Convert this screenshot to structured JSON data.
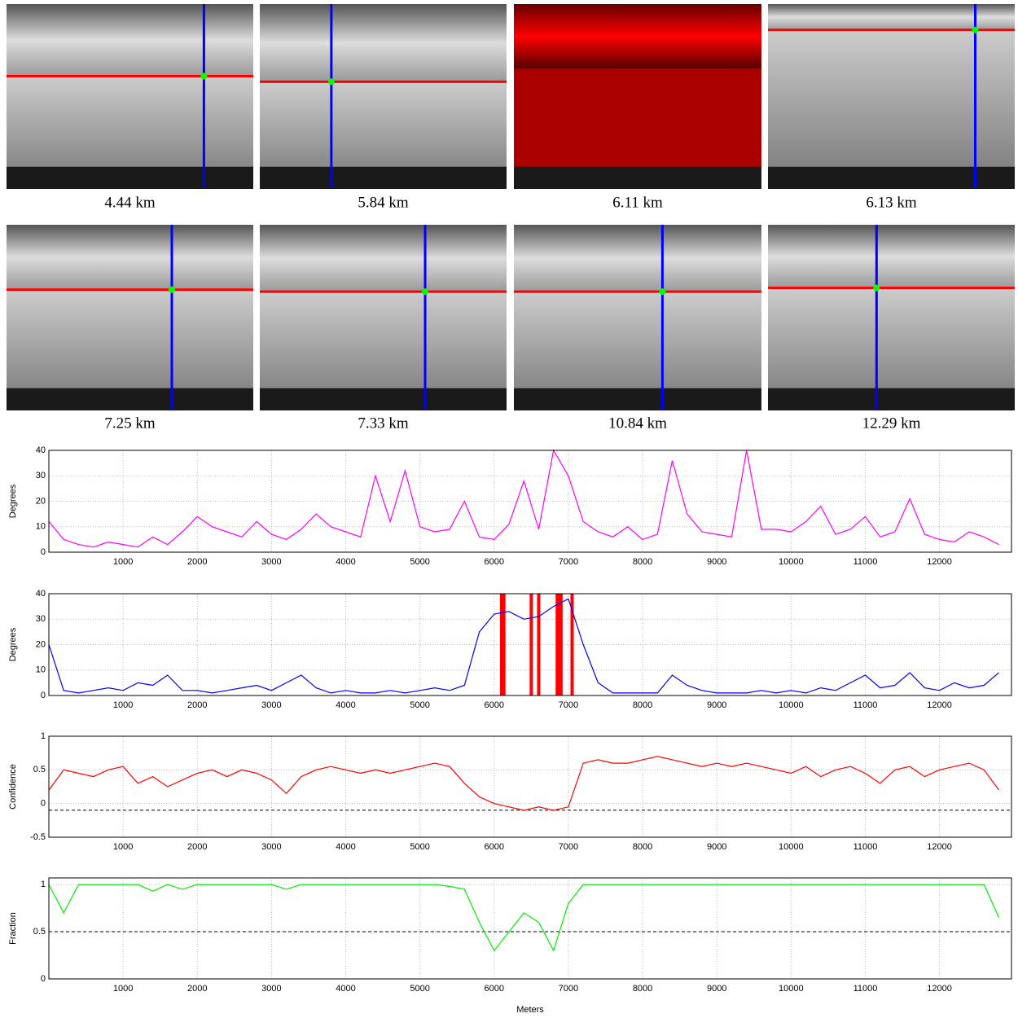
{
  "panels": [
    {
      "caption": "4.44 km"
    },
    {
      "caption": "5.84 km"
    },
    {
      "caption": "6.11 km"
    },
    {
      "caption": "6.13 km"
    },
    {
      "caption": "7.25 km"
    },
    {
      "caption": "7.33 km"
    },
    {
      "caption": "10.84 km"
    },
    {
      "caption": "12.29 km"
    }
  ],
  "chart_data": [
    {
      "type": "line",
      "ylabel": "Degrees",
      "color": "#ff00ff",
      "grid": true,
      "xlim": [
        0,
        12970
      ],
      "xticks": [
        1000,
        2000,
        3000,
        4000,
        5000,
        6000,
        7000,
        8000,
        9000,
        10000,
        11000,
        12000
      ],
      "ylim": [
        0,
        40
      ],
      "yticks": [
        0,
        10,
        20,
        30,
        40
      ],
      "x": [
        0,
        200,
        400,
        600,
        800,
        1000,
        1200,
        1400,
        1600,
        1800,
        2000,
        2200,
        2400,
        2600,
        2800,
        3000,
        3200,
        3400,
        3600,
        3800,
        4000,
        4200,
        4400,
        4600,
        4800,
        5000,
        5200,
        5400,
        5600,
        5800,
        6000,
        6200,
        6400,
        6600,
        6800,
        7000,
        7200,
        7400,
        7600,
        7800,
        8000,
        8200,
        8400,
        8600,
        8800,
        9000,
        9200,
        9400,
        9600,
        9800,
        10000,
        10200,
        10400,
        10600,
        10800,
        11000,
        11200,
        11400,
        11600,
        11800,
        12000,
        12200,
        12400,
        12600,
        12800
      ],
      "values": [
        12,
        5,
        3,
        2,
        4,
        3,
        2,
        6,
        3,
        8,
        14,
        10,
        8,
        6,
        12,
        7,
        5,
        9,
        15,
        10,
        8,
        6,
        30,
        12,
        32,
        10,
        8,
        9,
        20,
        6,
        5,
        11,
        28,
        9,
        40,
        30,
        12,
        8,
        6,
        10,
        5,
        7,
        36,
        15,
        8,
        7,
        6,
        40,
        9,
        9,
        8,
        12,
        18,
        7,
        9,
        14,
        6,
        8,
        21,
        7,
        5,
        4,
        8,
        6,
        3
      ]
    },
    {
      "type": "line",
      "ylabel": "Degrees",
      "color": "#0000ff",
      "grid": true,
      "xlim": [
        0,
        12970
      ],
      "xticks": [
        1000,
        2000,
        3000,
        4000,
        5000,
        6000,
        7000,
        8000,
        9000,
        10000,
        11000,
        12000
      ],
      "ylim": [
        0,
        40
      ],
      "yticks": [
        0,
        10,
        20,
        30,
        40
      ],
      "bands": [
        6100,
        6130,
        6500,
        6600,
        6850,
        6880,
        6900,
        7050
      ],
      "band_color": "#ff0000",
      "x": [
        0,
        200,
        400,
        600,
        800,
        1000,
        1200,
        1400,
        1600,
        1800,
        2000,
        2200,
        2400,
        2600,
        2800,
        3000,
        3200,
        3400,
        3600,
        3800,
        4000,
        4200,
        4400,
        4600,
        4800,
        5000,
        5200,
        5400,
        5600,
        5800,
        6000,
        6200,
        6400,
        6600,
        6800,
        7000,
        7200,
        7400,
        7600,
        7800,
        8000,
        8200,
        8400,
        8600,
        8800,
        9000,
        9200,
        9400,
        9600,
        9800,
        10000,
        10200,
        10400,
        10600,
        10800,
        11000,
        11200,
        11400,
        11600,
        11800,
        12000,
        12200,
        12400,
        12600,
        12800
      ],
      "values": [
        20,
        2,
        1,
        2,
        3,
        2,
        5,
        4,
        8,
        2,
        2,
        1,
        2,
        3,
        4,
        2,
        5,
        8,
        3,
        1,
        2,
        1,
        1,
        2,
        1,
        2,
        3,
        2,
        4,
        25,
        32,
        33,
        30,
        31,
        35,
        38,
        20,
        5,
        1,
        1,
        1,
        1,
        8,
        4,
        2,
        1,
        1,
        1,
        2,
        1,
        2,
        1,
        3,
        2,
        5,
        8,
        3,
        4,
        9,
        3,
        2,
        5,
        3,
        4,
        9
      ]
    },
    {
      "type": "line",
      "ylabel": "Confidence",
      "color": "#ff0000",
      "grid": true,
      "refline": -0.1,
      "xlim": [
        0,
        12970
      ],
      "xticks": [
        1000,
        2000,
        3000,
        4000,
        5000,
        6000,
        7000,
        8000,
        9000,
        10000,
        11000,
        12000
      ],
      "ylim": [
        -0.5,
        1
      ],
      "yticks": [
        -0.5,
        0,
        0.5,
        1
      ],
      "x": [
        0,
        200,
        400,
        600,
        800,
        1000,
        1200,
        1400,
        1600,
        1800,
        2000,
        2200,
        2400,
        2600,
        2800,
        3000,
        3200,
        3400,
        3600,
        3800,
        4000,
        4200,
        4400,
        4600,
        4800,
        5000,
        5200,
        5400,
        5600,
        5800,
        6000,
        6200,
        6400,
        6600,
        6800,
        7000,
        7200,
        7400,
        7600,
        7800,
        8000,
        8200,
        8400,
        8600,
        8800,
        9000,
        9200,
        9400,
        9600,
        9800,
        10000,
        10200,
        10400,
        10600,
        10800,
        11000,
        11200,
        11400,
        11600,
        11800,
        12000,
        12200,
        12400,
        12600,
        12800
      ],
      "values": [
        0.2,
        0.5,
        0.45,
        0.4,
        0.5,
        0.55,
        0.3,
        0.4,
        0.25,
        0.35,
        0.45,
        0.5,
        0.4,
        0.5,
        0.45,
        0.35,
        0.15,
        0.4,
        0.5,
        0.55,
        0.5,
        0.45,
        0.5,
        0.45,
        0.5,
        0.55,
        0.6,
        0.55,
        0.3,
        0.1,
        0.0,
        -0.05,
        -0.1,
        -0.05,
        -0.1,
        -0.05,
        0.6,
        0.65,
        0.6,
        0.6,
        0.65,
        0.7,
        0.65,
        0.6,
        0.55,
        0.6,
        0.55,
        0.6,
        0.55,
        0.5,
        0.45,
        0.55,
        0.4,
        0.5,
        0.55,
        0.45,
        0.3,
        0.5,
        0.55,
        0.4,
        0.5,
        0.55,
        0.6,
        0.5,
        0.2
      ]
    },
    {
      "type": "line",
      "ylabel": "Fraction",
      "xlabel": "Meters",
      "color": "#00ee00",
      "grid": true,
      "refline": 0.5,
      "xlim": [
        0,
        12970
      ],
      "xticks": [
        1000,
        2000,
        3000,
        4000,
        5000,
        6000,
        7000,
        8000,
        9000,
        10000,
        11000,
        12000
      ],
      "ylim": [
        0,
        1.07
      ],
      "yticks": [
        0,
        0.5,
        1
      ],
      "x": [
        0,
        200,
        400,
        600,
        800,
        1000,
        1200,
        1400,
        1600,
        1800,
        2000,
        2200,
        2400,
        2600,
        2800,
        3000,
        3200,
        3400,
        3600,
        3800,
        4000,
        4200,
        4400,
        4600,
        4800,
        5000,
        5200,
        5400,
        5600,
        5800,
        6000,
        6200,
        6400,
        6600,
        6800,
        7000,
        7200,
        7400,
        7600,
        7800,
        8000,
        8200,
        8400,
        8600,
        8800,
        9000,
        9200,
        9400,
        9600,
        9800,
        10000,
        10200,
        10400,
        10600,
        10800,
        11000,
        11200,
        11400,
        11600,
        11800,
        12000,
        12200,
        12400,
        12600,
        12800
      ],
      "values": [
        1,
        0.7,
        1,
        1,
        1,
        1,
        1,
        0.93,
        1,
        0.95,
        1,
        1,
        1,
        1,
        1,
        1,
        0.95,
        1,
        1,
        1,
        1,
        1,
        1,
        1,
        1,
        1,
        1,
        0.98,
        0.95,
        0.6,
        0.3,
        0.5,
        0.7,
        0.6,
        0.3,
        0.8,
        1,
        1,
        1,
        1,
        1,
        1,
        1,
        1,
        1,
        1,
        1,
        1,
        1,
        1,
        1,
        1,
        1,
        1,
        1,
        1,
        1,
        1,
        1,
        1,
        1,
        1,
        1,
        1,
        0.65
      ]
    }
  ]
}
